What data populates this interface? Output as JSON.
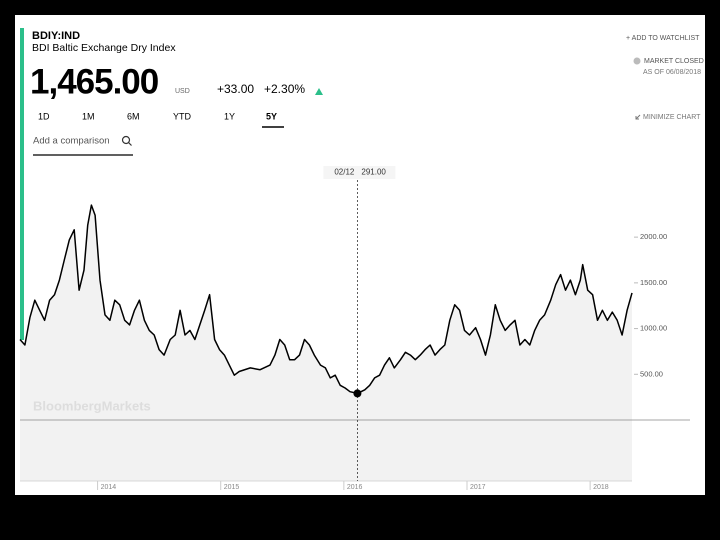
{
  "header": {
    "ticker": "BDIY:IND",
    "name": "BDI Baltic Exchange Dry Index",
    "price": "1,465.00",
    "currency": "USD",
    "change": "+33.00",
    "change_pct": "+2.30%",
    "watchlist": "+ ADD TO WATCHLIST",
    "market_status": "MARKET CLOSED",
    "as_of": "AS OF 06/08/2018",
    "minimize": "MINIMIZE CHART",
    "timeframes": [
      "1D",
      "1M",
      "6M",
      "YTD",
      "1Y",
      "5Y"
    ],
    "comparison": "Add a comparison",
    "watermark": "BloombergMarkets"
  },
  "chart_data": {
    "type": "area",
    "x": [
      2013.37,
      2013.41,
      2013.45,
      2013.49,
      2013.53,
      2013.57,
      2013.61,
      2013.65,
      2013.69,
      2013.73,
      2013.77,
      2013.81,
      2013.85,
      2013.89,
      2013.92,
      2013.95,
      2013.98,
      2014.02,
      2014.06,
      2014.1,
      2014.14,
      2014.18,
      2014.22,
      2014.26,
      2014.3,
      2014.34,
      2014.38,
      2014.42,
      2014.46,
      2014.5,
      2014.54,
      2014.59,
      2014.63,
      2014.67,
      2014.71,
      2014.75,
      2014.79,
      2014.83,
      2014.87,
      2014.91,
      2014.95,
      2014.99,
      2015.03,
      2015.07,
      2015.11,
      2015.15,
      2015.24,
      2015.32,
      2015.4,
      2015.44,
      2015.48,
      2015.52,
      2015.56,
      2015.6,
      2015.64,
      2015.68,
      2015.72,
      2015.76,
      2015.81,
      2015.85,
      2015.89,
      2015.93,
      2015.97,
      2016.01,
      2016.05,
      2016.11,
      2016.17,
      2016.21,
      2016.25,
      2016.29,
      2016.33,
      2016.37,
      2016.41,
      2016.46,
      2016.5,
      2016.54,
      2016.58,
      2016.62,
      2016.66,
      2016.7,
      2016.74,
      2016.78,
      2016.82,
      2016.86,
      2016.9,
      2016.94,
      2016.98,
      2017.02,
      2017.07,
      2017.11,
      2017.15,
      2017.19,
      2017.23,
      2017.27,
      2017.31,
      2017.35,
      2017.39,
      2017.43,
      2017.47,
      2017.51,
      2017.55,
      2017.59,
      2017.63,
      2017.68,
      2017.72,
      2017.76,
      2017.8,
      2017.84,
      2017.88,
      2017.92,
      2017.94,
      2017.98,
      2018.02,
      2018.06,
      2018.1,
      2018.14,
      2018.18,
      2018.22,
      2018.26,
      2018.3,
      2018.34
    ],
    "values": [
      880,
      820,
      1120,
      1310,
      1200,
      1090,
      1310,
      1370,
      1530,
      1750,
      1970,
      2080,
      1420,
      1640,
      2130,
      2350,
      2240,
      1530,
      1150,
      1090,
      1310,
      1260,
      1090,
      1040,
      1200,
      1310,
      1090,
      980,
      930,
      770,
      710,
      880,
      930,
      1200,
      930,
      980,
      880,
      1040,
      1200,
      1370,
      880,
      770,
      710,
      600,
      490,
      530,
      570,
      550,
      600,
      710,
      880,
      820,
      660,
      660,
      710,
      880,
      820,
      710,
      600,
      570,
      460,
      490,
      380,
      350,
      310,
      291,
      330,
      380,
      460,
      490,
      600,
      680,
      570,
      660,
      740,
      710,
      660,
      710,
      770,
      820,
      710,
      770,
      820,
      1090,
      1260,
      1200,
      980,
      930,
      1010,
      880,
      710,
      930,
      1260,
      1090,
      980,
      1040,
      1090,
      820,
      880,
      820,
      980,
      1090,
      1150,
      1310,
      1480,
      1590,
      1420,
      1530,
      1370,
      1530,
      1700,
      1420,
      1370,
      1090,
      1200,
      1090,
      1180,
      1090,
      930,
      1200,
      1390
    ],
    "color": "#000000",
    "fill": "#f2f2f2",
    "xlim": [
      2013.37,
      2018.34
    ],
    "xticks": [
      2014,
      2015,
      2016,
      2017,
      2018
    ],
    "ylim": [
      0,
      2800
    ],
    "yticks": [
      {
        "value": 500,
        "label": "500.00"
      },
      {
        "value": 1000,
        "label": "1000.00"
      },
      {
        "value": 1500,
        "label": "1500.00"
      },
      {
        "value": 2000,
        "label": "2000.00"
      }
    ],
    "crosshair": {
      "date": "02/12",
      "x": 2016.11,
      "value": 291,
      "value_label": "291.00"
    }
  }
}
